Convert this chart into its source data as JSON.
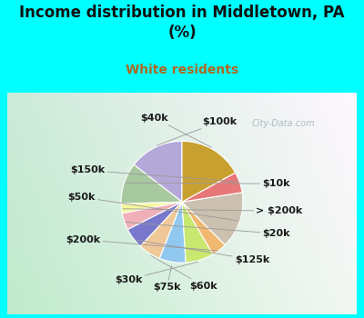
{
  "title": "Income distribution in Middletown, PA\n(%)",
  "subtitle": "White residents",
  "bg_color": "#00FFFF",
  "chart_bg_color": "#d6eee8",
  "labels": [
    "$100k",
    "$10k",
    "> $200k",
    "$20k",
    "$125k",
    "$60k",
    "$75k",
    "$30k",
    "$200k",
    "$50k",
    "$150k",
    "$40k"
  ],
  "values": [
    14.5,
    11.0,
    2.5,
    4.5,
    5.5,
    6.0,
    7.0,
    7.5,
    4.0,
    15.0,
    5.5,
    17.0
  ],
  "colors": [
    "#b3a8d8",
    "#a8c8a0",
    "#f5f5a0",
    "#f0b0b8",
    "#7878cc",
    "#f0c898",
    "#90c8f0",
    "#c8e870",
    "#f0b870",
    "#ccc0b0",
    "#e87878",
    "#c8a030"
  ],
  "label_fontsize": 8,
  "title_fontsize": 12,
  "subtitle_fontsize": 10,
  "subtitle_color": "#b06820",
  "watermark": "City-Data.com",
  "startangle": 90
}
